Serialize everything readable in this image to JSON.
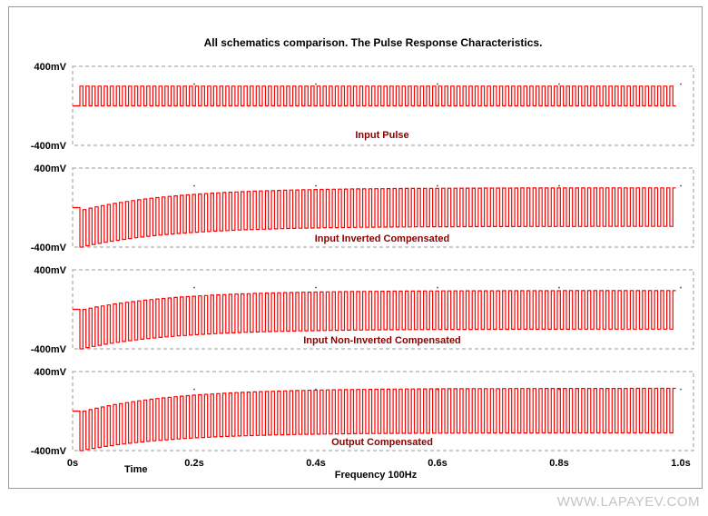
{
  "title": "All schematics comparison. The Pulse Response Characteristics.",
  "x_axis": {
    "time_label": "Time",
    "label": "Frequency 100Hz",
    "ticks": [
      "0s",
      "0.2s",
      "0.4s",
      "0.6s",
      "0.8s",
      "1.0s"
    ]
  },
  "y_axis": {
    "top_label": "400mV",
    "bottom_label": "-400mV"
  },
  "watermark": "WWW.LAPAYEV.COM",
  "colors": {
    "trace": "#ff0000",
    "label": "#8b0000",
    "baseline_marker": "#c8c800",
    "grid": "#999999"
  },
  "chart_data": [
    {
      "type": "line",
      "name": "Input Pulse",
      "x_unit": "s",
      "y_unit": "mV",
      "xlim": [
        0,
        1.0
      ],
      "ylim": [
        -400,
        400
      ],
      "signal": "square wave",
      "frequency_hz": 100,
      "high_mv": [
        200,
        200
      ],
      "low_mv": [
        0,
        0
      ],
      "baseline_mv": 0
    },
    {
      "type": "line",
      "name": "Input Inverted  Compensated",
      "x_unit": "s",
      "y_unit": "mV",
      "xlim": [
        0,
        1.0
      ],
      "ylim": [
        -400,
        400
      ],
      "signal": "square wave",
      "frequency_hz": 100,
      "high_mv": [
        -20,
        200
      ],
      "low_mv": [
        -400,
        -190
      ],
      "baseline_mv": 0
    },
    {
      "type": "line",
      "name": "Input Non-Inverted  Compensated",
      "x_unit": "s",
      "y_unit": "mV",
      "xlim": [
        0,
        1.0
      ],
      "ylim": [
        -400,
        400
      ],
      "signal": "square wave",
      "frequency_hz": 100,
      "high_mv": [
        0,
        190
      ],
      "low_mv": [
        -400,
        -200
      ],
      "baseline_mv": 0
    },
    {
      "type": "line",
      "name": "Output Compensated",
      "x_unit": "s",
      "y_unit": "mV",
      "xlim": [
        0,
        1.0
      ],
      "ylim": [
        -400,
        400
      ],
      "signal": "square wave",
      "frequency_hz": 100,
      "high_mv": [
        0,
        230
      ],
      "low_mv": [
        -400,
        -220
      ],
      "baseline_mv": 0
    }
  ]
}
